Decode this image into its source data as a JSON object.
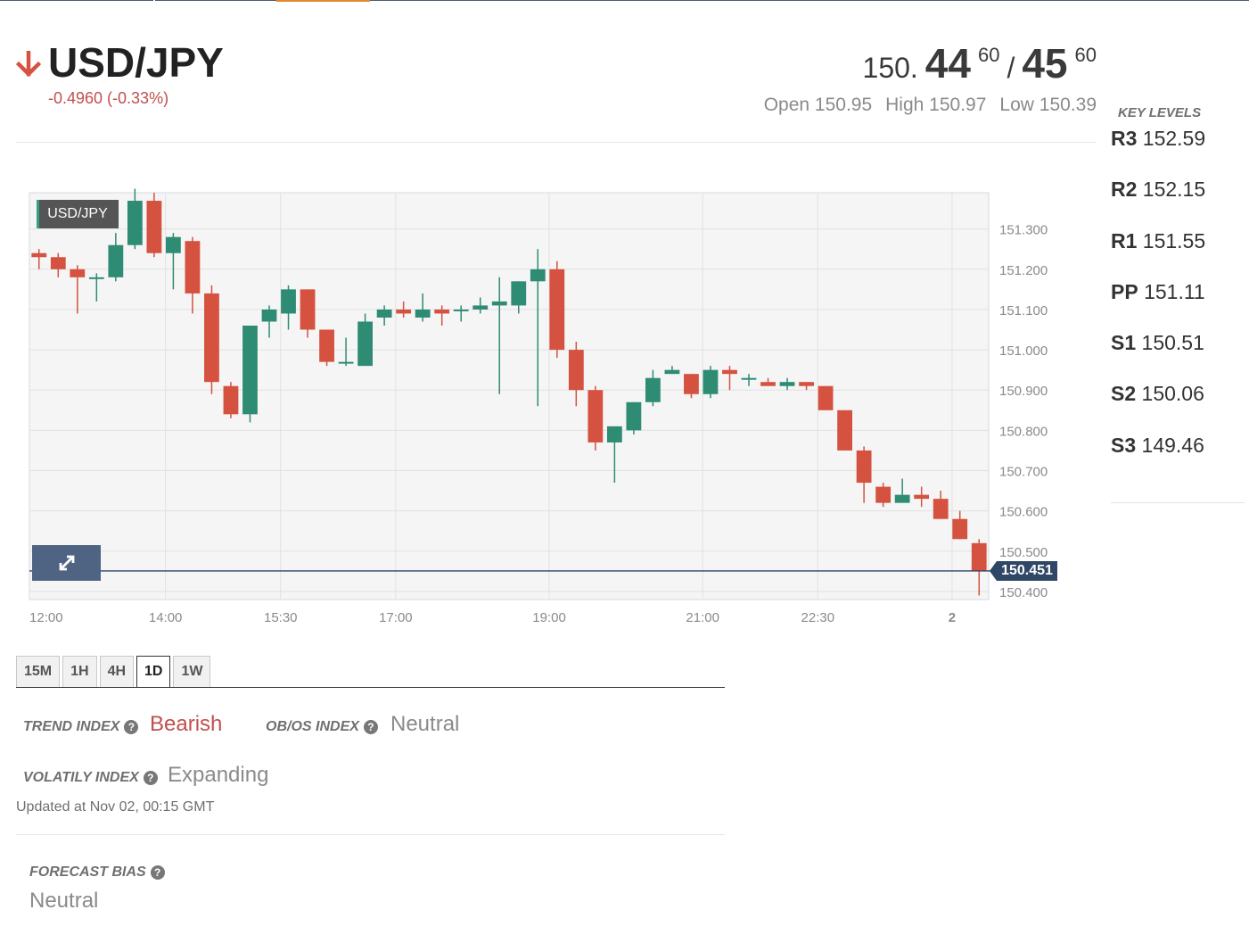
{
  "instrument": {
    "pair": "USD/JPY",
    "direction": "down",
    "change": "-0.4960 (-0.33%)",
    "bid_int": "150.",
    "bid_big": "44",
    "bid_small": "60",
    "slash": "/",
    "ask_big": "45",
    "ask_small": "60",
    "open": "Open 150.95",
    "high": "High 150.97",
    "low": "Low 150.39"
  },
  "key_levels": {
    "title": "KEY LEVELS",
    "levels": [
      {
        "label": "R3",
        "value": "152.59"
      },
      {
        "label": "R2",
        "value": "152.15"
      },
      {
        "label": "R1",
        "value": "151.55"
      },
      {
        "label": "PP",
        "value": "151.11"
      },
      {
        "label": "S1",
        "value": "150.51"
      },
      {
        "label": "S2",
        "value": "150.06"
      },
      {
        "label": "S3",
        "value": "149.46"
      }
    ]
  },
  "chart_data": {
    "type": "candlestick",
    "title": "USD/JPY",
    "current_price": "150.451",
    "ylim": [
      150.38,
      151.39
    ],
    "y_ticks": [
      "151.300",
      "151.200",
      "151.100",
      "151.000",
      "150.900",
      "150.800",
      "150.700",
      "150.600",
      "150.500",
      "150.400"
    ],
    "x_ticks": [
      "12:00",
      "14:00",
      "15:30",
      "17:00",
      "19:00",
      "21:00",
      "22:30",
      "2"
    ],
    "colors": {
      "up": "#2e8b74",
      "down": "#d4523f"
    },
    "candles": [
      {
        "o": 151.24,
        "h": 151.25,
        "l": 151.2,
        "c": 151.23
      },
      {
        "o": 151.23,
        "h": 151.24,
        "l": 151.18,
        "c": 151.2
      },
      {
        "o": 151.2,
        "h": 151.21,
        "l": 151.09,
        "c": 151.18
      },
      {
        "o": 151.18,
        "h": 151.19,
        "l": 151.12,
        "c": 151.18
      },
      {
        "o": 151.18,
        "h": 151.29,
        "l": 151.17,
        "c": 151.26
      },
      {
        "o": 151.26,
        "h": 151.4,
        "l": 151.25,
        "c": 151.37
      },
      {
        "o": 151.37,
        "h": 151.39,
        "l": 151.23,
        "c": 151.24
      },
      {
        "o": 151.24,
        "h": 151.29,
        "l": 151.15,
        "c": 151.28
      },
      {
        "o": 151.27,
        "h": 151.28,
        "l": 151.09,
        "c": 151.14
      },
      {
        "o": 151.14,
        "h": 151.16,
        "l": 150.89,
        "c": 150.92
      },
      {
        "o": 150.91,
        "h": 150.92,
        "l": 150.83,
        "c": 150.84
      },
      {
        "o": 150.84,
        "h": 151.06,
        "l": 150.82,
        "c": 151.06
      },
      {
        "o": 151.07,
        "h": 151.11,
        "l": 151.03,
        "c": 151.1
      },
      {
        "o": 151.09,
        "h": 151.16,
        "l": 151.05,
        "c": 151.15
      },
      {
        "o": 151.15,
        "h": 151.15,
        "l": 151.03,
        "c": 151.05
      },
      {
        "o": 151.05,
        "h": 151.05,
        "l": 150.96,
        "c": 150.97
      },
      {
        "o": 150.97,
        "h": 151.03,
        "l": 150.96,
        "c": 150.97
      },
      {
        "o": 150.96,
        "h": 151.09,
        "l": 150.96,
        "c": 151.07
      },
      {
        "o": 151.08,
        "h": 151.11,
        "l": 151.06,
        "c": 151.1
      },
      {
        "o": 151.1,
        "h": 151.12,
        "l": 151.08,
        "c": 151.09
      },
      {
        "o": 151.08,
        "h": 151.14,
        "l": 151.07,
        "c": 151.1
      },
      {
        "o": 151.1,
        "h": 151.11,
        "l": 151.06,
        "c": 151.09
      },
      {
        "o": 151.1,
        "h": 151.11,
        "l": 151.07,
        "c": 151.1
      },
      {
        "o": 151.1,
        "h": 151.13,
        "l": 151.09,
        "c": 151.11
      },
      {
        "o": 151.11,
        "h": 151.18,
        "l": 150.89,
        "c": 151.12
      },
      {
        "o": 151.11,
        "h": 151.17,
        "l": 151.09,
        "c": 151.17
      },
      {
        "o": 151.17,
        "h": 151.25,
        "l": 150.86,
        "c": 151.2
      },
      {
        "o": 151.2,
        "h": 151.22,
        "l": 150.98,
        "c": 151.0
      },
      {
        "o": 151.0,
        "h": 151.02,
        "l": 150.86,
        "c": 150.9
      },
      {
        "o": 150.9,
        "h": 150.91,
        "l": 150.75,
        "c": 150.77
      },
      {
        "o": 150.77,
        "h": 150.81,
        "l": 150.67,
        "c": 150.81
      },
      {
        "o": 150.8,
        "h": 150.87,
        "l": 150.79,
        "c": 150.87
      },
      {
        "o": 150.87,
        "h": 150.95,
        "l": 150.86,
        "c": 150.93
      },
      {
        "o": 150.94,
        "h": 150.96,
        "l": 150.94,
        "c": 150.95
      },
      {
        "o": 150.94,
        "h": 150.94,
        "l": 150.88,
        "c": 150.89
      },
      {
        "o": 150.89,
        "h": 150.96,
        "l": 150.88,
        "c": 150.95
      },
      {
        "o": 150.95,
        "h": 150.96,
        "l": 150.9,
        "c": 150.94
      },
      {
        "o": 150.93,
        "h": 150.94,
        "l": 150.91,
        "c": 150.93
      },
      {
        "o": 150.92,
        "h": 150.93,
        "l": 150.92,
        "c": 150.91
      },
      {
        "o": 150.91,
        "h": 150.93,
        "l": 150.9,
        "c": 150.92
      },
      {
        "o": 150.92,
        "h": 150.92,
        "l": 150.9,
        "c": 150.91
      },
      {
        "o": 150.91,
        "h": 150.91,
        "l": 150.85,
        "c": 150.85
      },
      {
        "o": 150.85,
        "h": 150.85,
        "l": 150.75,
        "c": 150.75
      },
      {
        "o": 150.75,
        "h": 150.76,
        "l": 150.62,
        "c": 150.67
      },
      {
        "o": 150.66,
        "h": 150.67,
        "l": 150.61,
        "c": 150.62
      },
      {
        "o": 150.62,
        "h": 150.68,
        "l": 150.62,
        "c": 150.64
      },
      {
        "o": 150.64,
        "h": 150.66,
        "l": 150.61,
        "c": 150.63
      },
      {
        "o": 150.63,
        "h": 150.65,
        "l": 150.58,
        "c": 150.58
      },
      {
        "o": 150.58,
        "h": 150.6,
        "l": 150.53,
        "c": 150.53
      },
      {
        "o": 150.52,
        "h": 150.53,
        "l": 150.39,
        "c": 150.45
      }
    ]
  },
  "timeframes": {
    "tabs": [
      "15M",
      "1H",
      "4H",
      "1D",
      "1W"
    ],
    "active": "1D"
  },
  "indicators": {
    "trend_label": "TREND INDEX",
    "trend_value": "Bearish",
    "obos_label": "OB/OS INDEX",
    "obos_value": "Neutral",
    "volatility_label": "VOLATILY INDEX",
    "volatility_value": "Expanding",
    "updated": "Updated at Nov 02, 00:15 GMT",
    "forecast_label": "FORECAST BIAS",
    "forecast_value": "Neutral",
    "bearish_color": "#c0504d",
    "neutral_color": "#8a8a8a"
  }
}
